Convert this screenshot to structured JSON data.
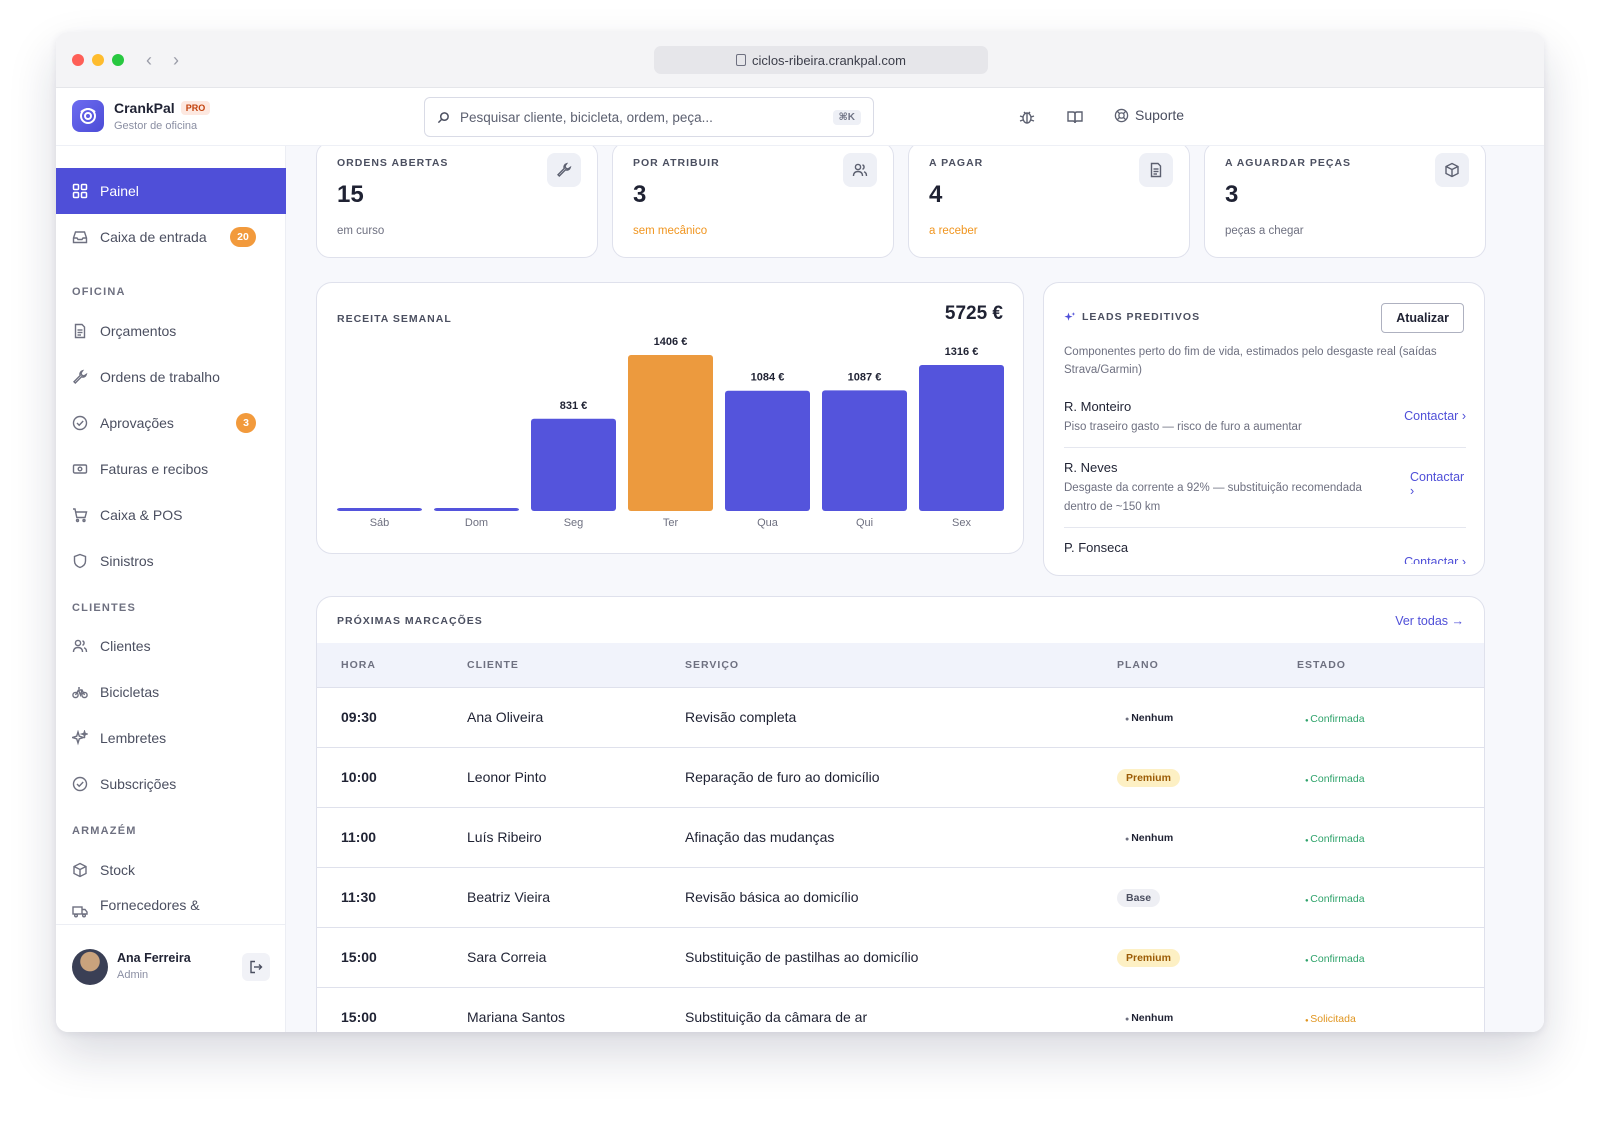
{
  "browser": {
    "url": "ciclos-ribeira.crankpal.com"
  },
  "brand": {
    "name": "CrankPal",
    "badge": "PRO",
    "subtitle": "Gestor de oficina"
  },
  "search": {
    "placeholder": "Pesquisar cliente, bicicleta, ordem, peça...",
    "shortcut": "⌘K"
  },
  "topbar": {
    "support_label": "Suporte"
  },
  "sidebar": {
    "top_items": [
      {
        "label": "Painel",
        "icon": "grid-icon"
      },
      {
        "label": "Caixa de entrada",
        "icon": "inbox-icon",
        "badge": "20"
      }
    ],
    "sections": [
      {
        "title": "OFICINA",
        "items": [
          {
            "label": "Orçamentos",
            "icon": "document-icon"
          },
          {
            "label": "Ordens de trabalho",
            "icon": "wrench-icon"
          },
          {
            "label": "Aprovações",
            "icon": "check-circle-icon",
            "badge": "3"
          },
          {
            "label": "Faturas e recibos",
            "icon": "banknote-icon"
          },
          {
            "label": "Caixa & POS",
            "icon": "cart-icon"
          },
          {
            "label": "Sinistros",
            "icon": "shield-icon"
          }
        ]
      },
      {
        "title": "CLIENTES",
        "items": [
          {
            "label": "Clientes",
            "icon": "users-icon"
          },
          {
            "label": "Bicicletas",
            "icon": "bike-icon"
          },
          {
            "label": "Lembretes",
            "icon": "sparkle-icon"
          },
          {
            "label": "Subscrições",
            "icon": "check-circle-icon"
          }
        ]
      },
      {
        "title": "ARMAZÉM",
        "items": [
          {
            "label": "Stock",
            "icon": "box-icon"
          },
          {
            "label": "Fornecedores &",
            "icon": "truck-icon"
          }
        ]
      }
    ],
    "user": {
      "name": "Ana Ferreira",
      "role": "Admin"
    }
  },
  "kpis": [
    {
      "label": "ORDENS ABERTAS",
      "value": "15",
      "sub": "em curso",
      "icon": "wrench-icon"
    },
    {
      "label": "POR ATRIBUIR",
      "value": "3",
      "sub": "sem mecânico",
      "icon": "users-icon"
    },
    {
      "label": "A PAGAR",
      "value": "4",
      "sub": "a receber",
      "icon": "document-icon"
    },
    {
      "label": "A AGUARDAR PEÇAS",
      "value": "3",
      "sub": "peças a chegar",
      "icon": "box-icon"
    }
  ],
  "revenue": {
    "label": "RECEITA SEMANAL",
    "total": "5725 €"
  },
  "chart_data": {
    "type": "bar",
    "title": "RECEITA SEMANAL",
    "categories": [
      "Sáb",
      "Dom",
      "Seg",
      "Ter",
      "Qua",
      "Qui",
      "Sex"
    ],
    "values": [
      0,
      0,
      831,
      1406,
      1084,
      1087,
      1316
    ],
    "data_labels": [
      "",
      "",
      "831 €",
      "1406 €",
      "1084 €",
      "1087 €",
      "1316 €"
    ],
    "highlight_index": 3,
    "colors": {
      "bar": "#5454dc",
      "highlight": "#ec9a3e"
    },
    "ylim": [
      0,
      1406
    ],
    "grid": false
  },
  "leads": {
    "label": "LEADS PREDITIVOS",
    "refresh_label": "Atualizar",
    "description": "Componentes perto do fim de vida, estimados pelo desgaste real (saídas Strava/Garmin)",
    "items": [
      {
        "name": "R. Monteiro",
        "note": "Piso traseiro gasto — risco de furo a aumentar",
        "action": "Contactar ›"
      },
      {
        "name": "R. Neves",
        "note": "Desgaste da corrente a 92% — substituição recomendada dentro de ~150 km",
        "action": "Contactar ›"
      },
      {
        "name": "P. Fonseca",
        "note": "",
        "action": "Contactar ›"
      }
    ]
  },
  "appointments": {
    "label": "PRÓXIMAS MARCAÇÕES",
    "view_all": "Ver todas →",
    "columns": [
      "HORA",
      "CLIENTE",
      "SERVIÇO",
      "PLANO",
      "ESTADO"
    ],
    "rows": [
      {
        "time": "09:30",
        "client": "Ana Oliveira",
        "service": "Revisão completa",
        "plan": "Nenhum",
        "status": "Confirmada"
      },
      {
        "time": "10:00",
        "client": "Leonor Pinto",
        "service": "Reparação de furo ao domicílio",
        "plan": "Premium",
        "status": "Confirmada"
      },
      {
        "time": "11:00",
        "client": "Luís Ribeiro",
        "service": "Afinação das mudanças",
        "plan": "Nenhum",
        "status": "Confirmada"
      },
      {
        "time": "11:30",
        "client": "Beatriz Vieira",
        "service": "Revisão básica ao domicílio",
        "plan": "Base",
        "status": "Confirmada"
      },
      {
        "time": "15:00",
        "client": "Sara Correia",
        "service": "Substituição de pastilhas ao domicílio",
        "plan": "Premium",
        "status": "Confirmada"
      },
      {
        "time": "15:00",
        "client": "Mariana Santos",
        "service": "Substituição da câmara de ar",
        "plan": "Nenhum",
        "status": "Solicitada"
      }
    ]
  }
}
